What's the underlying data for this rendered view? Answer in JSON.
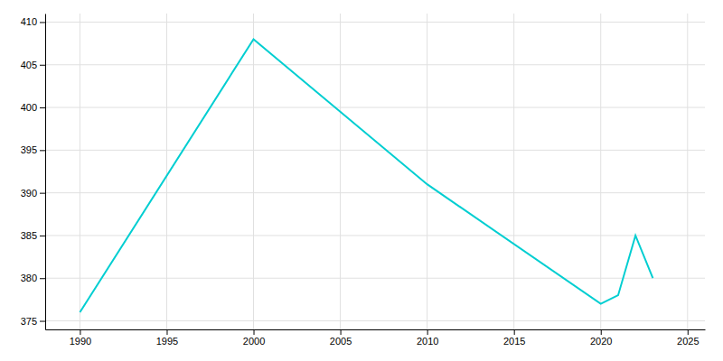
{
  "chart_data": {
    "type": "line",
    "x": [
      1990,
      2000,
      2010,
      2020,
      2021,
      2022,
      2023
    ],
    "values": [
      376,
      408,
      391,
      377,
      378,
      385,
      380
    ],
    "color": "#00CED1",
    "xlim": [
      1988,
      2026
    ],
    "ylim": [
      374,
      411
    ],
    "xticks": [
      1990,
      1995,
      2000,
      2005,
      2010,
      2015,
      2020,
      2025
    ],
    "yticks": [
      375,
      380,
      385,
      390,
      395,
      400,
      405,
      410
    ],
    "grid": true
  }
}
